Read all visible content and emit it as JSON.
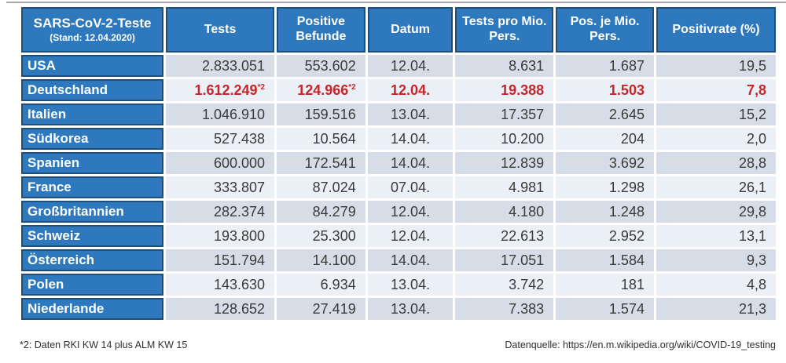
{
  "colors": {
    "header_blue": "#2E79BE",
    "cell_border_blue": "#1F4E79",
    "row_dark": "#D7DDE6",
    "row_light": "#EBF0F6",
    "highlight_red": "#C5262C",
    "header_text": "#FFFFFF",
    "body_text": "#3A3A3A"
  },
  "chart_data": {
    "type": "table",
    "title": "SARS-CoV-2-Teste",
    "subtitle": "(Stand: 12.04.2020)",
    "columns": [
      "Tests",
      "Positive Befunde",
      "Datum",
      "Tests pro Mio. Pers.",
      "Pos. je Mio. Pers.",
      "Positivrate (%)"
    ],
    "rows": [
      {
        "country": "USA",
        "tests": "2.833.051",
        "positive": "553.602",
        "datum": "12.04.",
        "tests_per_mio": "8.631",
        "pos_per_mio": "1.687",
        "positivrate": "19,5",
        "highlight": false
      },
      {
        "country": "Deutschland",
        "tests": "1.612.249",
        "tests_note": "*2",
        "positive": "124.966",
        "positive_note": "*2",
        "datum": "12.04.",
        "tests_per_mio": "19.388",
        "pos_per_mio": "1.503",
        "positivrate": "7,8",
        "highlight": true
      },
      {
        "country": "Italien",
        "tests": "1.046.910",
        "positive": "159.516",
        "datum": "13.04.",
        "tests_per_mio": "17.357",
        "pos_per_mio": "2.645",
        "positivrate": "15,2",
        "highlight": false
      },
      {
        "country": "Südkorea",
        "tests": "527.438",
        "positive": "10.564",
        "datum": "14.04.",
        "tests_per_mio": "10.200",
        "pos_per_mio": "204",
        "positivrate": "2,0",
        "highlight": false
      },
      {
        "country": "Spanien",
        "tests": "600.000",
        "positive": "172.541",
        "datum": "14.04.",
        "tests_per_mio": "12.839",
        "pos_per_mio": "3.692",
        "positivrate": "28,8",
        "highlight": false
      },
      {
        "country": "France",
        "tests": "333.807",
        "positive": "87.024",
        "datum": "07.04.",
        "tests_per_mio": "4.981",
        "pos_per_mio": "1.298",
        "positivrate": "26,1",
        "highlight": false
      },
      {
        "country": "Großbritannien",
        "tests": "282.374",
        "positive": "84.279",
        "datum": "12.04.",
        "tests_per_mio": "4.180",
        "pos_per_mio": "1.248",
        "positivrate": "29,8",
        "highlight": false
      },
      {
        "country": "Schweiz",
        "tests": "193.800",
        "positive": "25.300",
        "datum": "12.04.",
        "tests_per_mio": "22.613",
        "pos_per_mio": "2.952",
        "positivrate": "13,1",
        "highlight": false
      },
      {
        "country": "Österreich",
        "tests": "151.794",
        "positive": "14.100",
        "datum": "14.04.",
        "tests_per_mio": "17.051",
        "pos_per_mio": "1.584",
        "positivrate": "9,3",
        "highlight": false
      },
      {
        "country": "Polen",
        "tests": "143.630",
        "positive": "6.934",
        "datum": "13.04.",
        "tests_per_mio": "3.742",
        "pos_per_mio": "181",
        "positivrate": "4,8",
        "highlight": false
      },
      {
        "country": "Niederlande",
        "tests": "128.652",
        "positive": "27.419",
        "datum": "13.04.",
        "tests_per_mio": "7.383",
        "pos_per_mio": "1.574",
        "positivrate": "21,3",
        "highlight": false
      }
    ]
  },
  "footer": {
    "note": "*2: Daten RKI KW 14 plus ALM KW 15",
    "source": "Datenquelle: https://en.m.wikipedia.org/wiki/COVID-19_testing"
  }
}
